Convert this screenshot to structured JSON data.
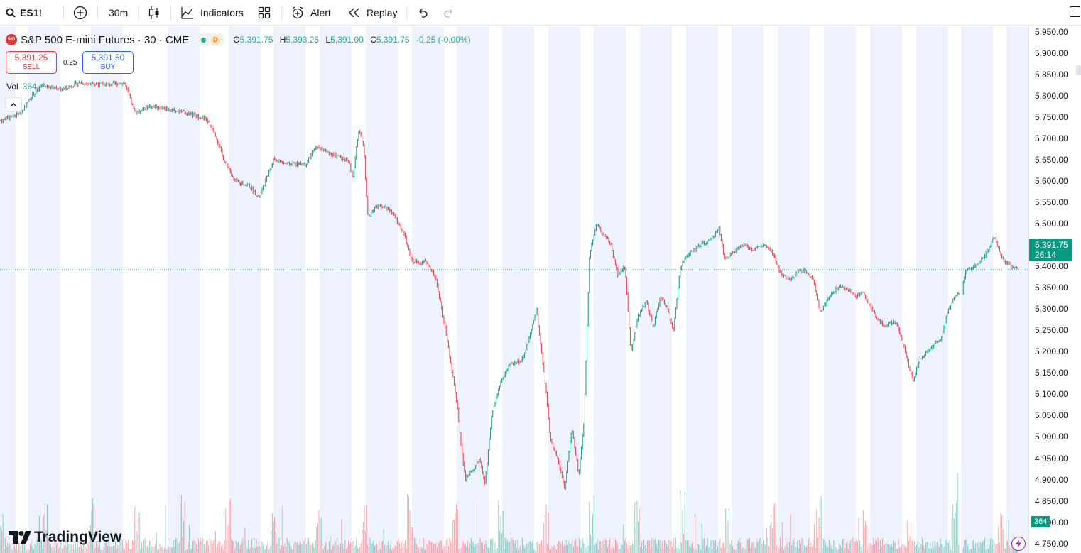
{
  "toolbar": {
    "symbol": "ES1!",
    "interval": "30m",
    "indicators_label": "Indicators",
    "alert_label": "Alert",
    "replay_label": "Replay"
  },
  "legend": {
    "logo_text": "500",
    "title": "S&P 500 E-mini Futures · 30 · CME",
    "delay_badge": "D",
    "open_label": "O",
    "open": "5,391.75",
    "high_label": "H",
    "high": "5,393.25",
    "low_label": "L",
    "low": "5,391.00",
    "close_label": "C",
    "close": "5,391.75",
    "change": "-0.25 (-0.00%)"
  },
  "trade": {
    "sell_price": "5,391.25",
    "sell_label": "SELL",
    "spread": "0.25",
    "buy_price": "5,391.50",
    "buy_label": "BUY"
  },
  "volume": {
    "label": "Vol",
    "value": "364",
    "axis_tag": "364"
  },
  "price_axis": {
    "ticks": [
      "5,950.00",
      "5,900.00",
      "5,850.00",
      "5,800.00",
      "5,750.00",
      "5,700.00",
      "5,650.00",
      "5,600.00",
      "5,550.00",
      "5,500.00",
      "5,450.00",
      "5,400.00",
      "5,350.00",
      "5,300.00",
      "5,250.00",
      "5,200.00",
      "5,150.00",
      "5,100.00",
      "5,050.00",
      "5,000.00",
      "4,950.00",
      "4,900.00",
      "4,850.00",
      "4,800.00",
      "4,750.00"
    ],
    "last_price": "5,391.75",
    "countdown": "26:14"
  },
  "brand": {
    "name": "TradingView"
  },
  "colors": {
    "up": "#089981",
    "down": "#f23645",
    "session_band": "#eef2fd",
    "accent": "#2962ff"
  },
  "chart_data": {
    "type": "candlestick",
    "y_range": [
      4750,
      5950
    ],
    "last_price": 5391.75,
    "price_path": [
      [
        0,
        5740
      ],
      [
        30,
        5760
      ],
      [
        45,
        5800
      ],
      [
        60,
        5825
      ],
      [
        90,
        5815
      ],
      [
        110,
        5830
      ],
      [
        150,
        5825
      ],
      [
        175,
        5830
      ],
      [
        190,
        5760
      ],
      [
        210,
        5775
      ],
      [
        235,
        5770
      ],
      [
        260,
        5760
      ],
      [
        290,
        5745
      ],
      [
        302,
        5715
      ],
      [
        315,
        5650
      ],
      [
        330,
        5600
      ],
      [
        350,
        5590
      ],
      [
        365,
        5560
      ],
      [
        385,
        5650
      ],
      [
        405,
        5640
      ],
      [
        430,
        5640
      ],
      [
        445,
        5680
      ],
      [
        470,
        5660
      ],
      [
        490,
        5650
      ],
      [
        497,
        5610
      ],
      [
        505,
        5720
      ],
      [
        512,
        5680
      ],
      [
        518,
        5520
      ],
      [
        535,
        5545
      ],
      [
        550,
        5530
      ],
      [
        568,
        5480
      ],
      [
        580,
        5410
      ],
      [
        600,
        5410
      ],
      [
        612,
        5380
      ],
      [
        622,
        5300
      ],
      [
        632,
        5200
      ],
      [
        643,
        5085
      ],
      [
        648,
        5000
      ],
      [
        655,
        4900
      ],
      [
        665,
        4920
      ],
      [
        675,
        4950
      ],
      [
        683,
        4890
      ],
      [
        692,
        5050
      ],
      [
        705,
        5130
      ],
      [
        718,
        5170
      ],
      [
        735,
        5180
      ],
      [
        745,
        5230
      ],
      [
        755,
        5300
      ],
      [
        768,
        5120
      ],
      [
        775,
        4990
      ],
      [
        785,
        4950
      ],
      [
        795,
        4880
      ],
      [
        805,
        5020
      ],
      [
        815,
        4910
      ],
      [
        822,
        5030
      ],
      [
        830,
        5430
      ],
      [
        840,
        5500
      ],
      [
        852,
        5470
      ],
      [
        860,
        5450
      ],
      [
        870,
        5380
      ],
      [
        880,
        5400
      ],
      [
        888,
        5200
      ],
      [
        898,
        5280
      ],
      [
        910,
        5320
      ],
      [
        920,
        5260
      ],
      [
        930,
        5330
      ],
      [
        940,
        5300
      ],
      [
        948,
        5250
      ],
      [
        958,
        5400
      ],
      [
        970,
        5430
      ],
      [
        985,
        5450
      ],
      [
        1000,
        5460
      ],
      [
        1012,
        5490
      ],
      [
        1020,
        5420
      ],
      [
        1032,
        5430
      ],
      [
        1045,
        5450
      ],
      [
        1060,
        5440
      ],
      [
        1075,
        5450
      ],
      [
        1088,
        5430
      ],
      [
        1100,
        5380
      ],
      [
        1115,
        5370
      ],
      [
        1125,
        5390
      ],
      [
        1135,
        5390
      ],
      [
        1145,
        5370
      ],
      [
        1155,
        5290
      ],
      [
        1165,
        5320
      ],
      [
        1178,
        5350
      ],
      [
        1190,
        5350
      ],
      [
        1205,
        5330
      ],
      [
        1215,
        5340
      ],
      [
        1230,
        5290
      ],
      [
        1245,
        5260
      ],
      [
        1260,
        5270
      ],
      [
        1270,
        5230
      ],
      [
        1285,
        5130
      ],
      [
        1295,
        5180
      ],
      [
        1310,
        5210
      ],
      [
        1325,
        5230
      ],
      [
        1335,
        5300
      ],
      [
        1345,
        5330
      ],
      [
        1352,
        5340
      ],
      [
        1360,
        5390
      ],
      [
        1372,
        5400
      ],
      [
        1385,
        5420
      ],
      [
        1400,
        5470
      ],
      [
        1410,
        5420
      ],
      [
        1420,
        5405
      ],
      [
        1434,
        5391.75
      ]
    ]
  }
}
